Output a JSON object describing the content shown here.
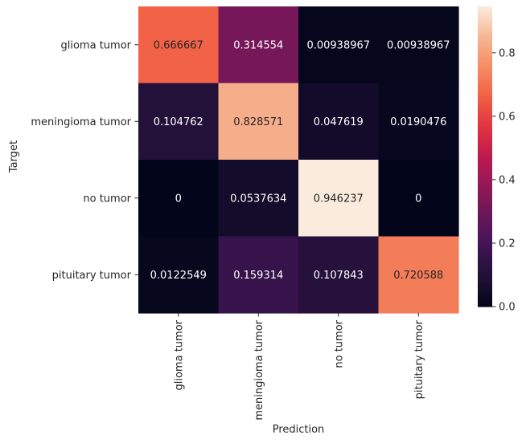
{
  "chart_data": {
    "type": "heatmap",
    "xlabel": "Prediction",
    "ylabel": "Target",
    "x_categories": [
      "glioma tumor",
      "meningioma tumor",
      "no tumor",
      "pituitary tumor"
    ],
    "y_categories": [
      "glioma tumor",
      "meningioma tumor",
      "no tumor",
      "pituitary tumor"
    ],
    "values": [
      [
        0.666667,
        0.314554,
        0.00938967,
        0.00938967
      ],
      [
        0.104762,
        0.828571,
        0.047619,
        0.0190476
      ],
      [
        0,
        0.0537634,
        0.946237,
        0
      ],
      [
        0.0122549,
        0.159314,
        0.107843,
        0.720588
      ]
    ],
    "cell_labels": [
      [
        "0.666667",
        "0.314554",
        "0.00938967",
        "0.00938967"
      ],
      [
        "0.104762",
        "0.828571",
        "0.047619",
        "0.0190476"
      ],
      [
        "0",
        "0.0537634",
        "0.946237",
        "0"
      ],
      [
        "0.0122549",
        "0.159314",
        "0.107843",
        "0.720588"
      ]
    ],
    "colorbar": {
      "range": [
        0,
        0.946237
      ],
      "ticks": [
        0.0,
        0.2,
        0.4,
        0.6,
        0.8
      ],
      "tick_labels": [
        "0.0",
        "0.2",
        "0.4",
        "0.6",
        "0.8"
      ]
    },
    "colormap": "rocket",
    "grid": false
  }
}
